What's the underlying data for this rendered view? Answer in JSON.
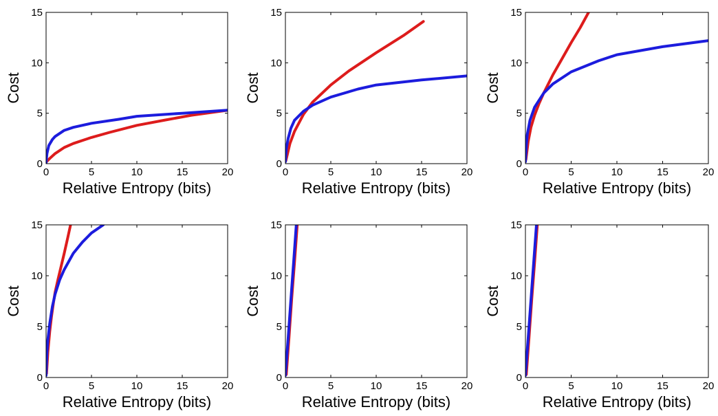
{
  "chart_data": [
    {
      "type": "line",
      "xlabel": "Relative Entropy (bits)",
      "ylabel": "Cost",
      "xlim": [
        0,
        20
      ],
      "ylim": [
        0,
        15
      ],
      "xticks": [
        "0",
        "5",
        "10",
        "15",
        "20"
      ],
      "yticks": [
        "0",
        "5",
        "10",
        "15"
      ],
      "grid": false,
      "series": [
        {
          "color": "#dd1c1c",
          "x": [
            0.05,
            0.5,
            1,
            2,
            3,
            5,
            7,
            10,
            13,
            16,
            20
          ],
          "y": [
            0.2,
            0.6,
            1.0,
            1.6,
            2.0,
            2.6,
            3.1,
            3.8,
            4.3,
            4.8,
            5.3
          ]
        },
        {
          "color": "#1c1cdd",
          "x": [
            0,
            0.1,
            0.3,
            0.7,
            1,
            2,
            3,
            5,
            8,
            10,
            15,
            20
          ],
          "y": [
            0.1,
            1.0,
            1.8,
            2.4,
            2.7,
            3.3,
            3.6,
            4.0,
            4.4,
            4.7,
            5.0,
            5.3
          ]
        }
      ]
    },
    {
      "type": "line",
      "xlabel": "Relative Entropy (bits)",
      "ylabel": "Cost",
      "xlim": [
        0,
        20
      ],
      "ylim": [
        0,
        15
      ],
      "xticks": [
        "0",
        "5",
        "10",
        "15",
        "20"
      ],
      "yticks": [
        "0",
        "5",
        "10",
        "15"
      ],
      "grid": false,
      "series": [
        {
          "color": "#dd1c1c",
          "x": [
            0.05,
            0.5,
            1,
            2,
            3,
            5,
            7,
            10,
            13,
            15.2
          ],
          "y": [
            0.3,
            2.0,
            3.2,
            4.9,
            6.1,
            7.8,
            9.2,
            11.0,
            12.7,
            14.1
          ]
        },
        {
          "color": "#1c1cdd",
          "x": [
            0,
            0.1,
            0.3,
            0.6,
            1,
            2,
            3,
            5,
            8,
            10,
            15,
            20
          ],
          "y": [
            0.2,
            1.5,
            2.5,
            3.5,
            4.3,
            5.2,
            5.8,
            6.6,
            7.4,
            7.8,
            8.3,
            8.7
          ]
        }
      ]
    },
    {
      "type": "line",
      "xlabel": "Relative Entropy (bits)",
      "ylabel": "Cost",
      "xlim": [
        0,
        20
      ],
      "ylim": [
        0,
        15
      ],
      "xticks": [
        "0",
        "5",
        "10",
        "15",
        "20"
      ],
      "yticks": [
        "0",
        "5",
        "10",
        "15"
      ],
      "grid": false,
      "series": [
        {
          "color": "#dd1c1c",
          "x": [
            0.05,
            0.3,
            0.6,
            1,
            1.5,
            2,
            3,
            4,
            5,
            6,
            6.9
          ],
          "y": [
            0.4,
            2.2,
            3.6,
            4.8,
            6.0,
            7.0,
            8.8,
            10.4,
            12.0,
            13.5,
            15.0
          ]
        },
        {
          "color": "#1c1cdd",
          "x": [
            0,
            0.1,
            0.2,
            0.5,
            1,
            2,
            3,
            5,
            8,
            10,
            15,
            20
          ],
          "y": [
            0.2,
            1.8,
            2.9,
            4.3,
            5.6,
            7.0,
            7.9,
            9.1,
            10.2,
            10.8,
            11.6,
            12.2
          ]
        }
      ]
    },
    {
      "type": "line",
      "xlabel": "Relative Entropy (bits)",
      "ylabel": "Cost",
      "xlim": [
        0,
        20
      ],
      "ylim": [
        0,
        15
      ],
      "xticks": [
        "0",
        "5",
        "10",
        "15",
        "20"
      ],
      "yticks": [
        "0",
        "5",
        "10",
        "15"
      ],
      "grid": false,
      "series": [
        {
          "color": "#dd1c1c",
          "x": [
            0.05,
            0.2,
            0.4,
            0.6,
            0.8,
            1,
            1.3,
            1.6,
            2,
            2.4,
            2.7
          ],
          "y": [
            0.4,
            2.5,
            4.5,
            6.0,
            7.3,
            8.4,
            9.6,
            10.7,
            12.2,
            13.8,
            15.0
          ]
        },
        {
          "color": "#1c1cdd",
          "x": [
            0,
            0.05,
            0.1,
            0.2,
            0.4,
            0.7,
            1,
            1.5,
            2,
            3,
            4,
            5,
            6.3
          ],
          "y": [
            0.2,
            1.5,
            2.5,
            3.7,
            5.3,
            7.0,
            8.2,
            9.6,
            10.6,
            12.2,
            13.3,
            14.2,
            15.0
          ]
        }
      ]
    },
    {
      "type": "line",
      "xlabel": "Relative Entropy (bits)",
      "ylabel": "Cost",
      "xlim": [
        0,
        20
      ],
      "ylim": [
        0,
        15
      ],
      "xticks": [
        "0",
        "5",
        "10",
        "15",
        "20"
      ],
      "yticks": [
        "0",
        "5",
        "10",
        "15"
      ],
      "grid": false,
      "series": [
        {
          "color": "#dd1c1c",
          "x": [
            0.1,
            0.4,
            0.7,
            1.0,
            1.3
          ],
          "y": [
            0.3,
            4.0,
            7.8,
            11.3,
            15.0
          ]
        },
        {
          "color": "#1c1cdd",
          "x": [
            0,
            0.3,
            0.6,
            0.9,
            1.2
          ],
          "y": [
            0.2,
            3.9,
            7.6,
            11.3,
            15.0
          ]
        }
      ]
    },
    {
      "type": "line",
      "xlabel": "Relative Entropy (bits)",
      "ylabel": "Cost",
      "xlim": [
        0,
        20
      ],
      "ylim": [
        0,
        15
      ],
      "xticks": [
        "0",
        "5",
        "10",
        "15",
        "20"
      ],
      "yticks": [
        "0",
        "5",
        "10",
        "15"
      ],
      "grid": false,
      "series": [
        {
          "color": "#dd1c1c",
          "x": [
            0.1,
            0.4,
            0.7,
            1.0,
            1.3
          ],
          "y": [
            0.3,
            4.0,
            7.8,
            11.3,
            15.0
          ]
        },
        {
          "color": "#1c1cdd",
          "x": [
            0,
            0.3,
            0.6,
            0.9,
            1.2
          ],
          "y": [
            0.2,
            3.9,
            7.6,
            11.3,
            15.0
          ]
        }
      ]
    }
  ]
}
